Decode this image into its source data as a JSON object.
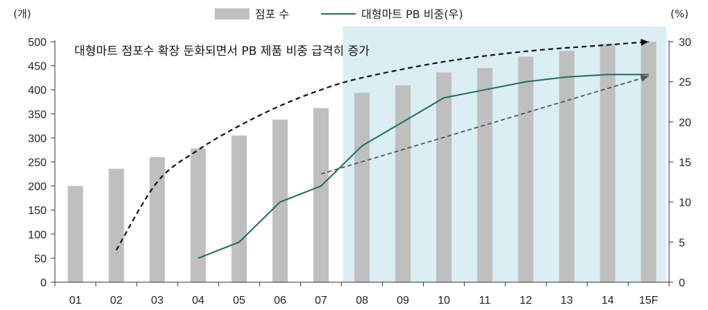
{
  "chart_data": {
    "type": "bar",
    "categories": [
      "01",
      "02",
      "03",
      "04",
      "05",
      "06",
      "07",
      "08",
      "09",
      "10",
      "11",
      "12",
      "13",
      "14",
      "15F"
    ],
    "series": [
      {
        "name": "점포 수",
        "kind": "bar",
        "axis": "left",
        "color": "#bfbfbf",
        "values": [
          200,
          236,
          260,
          278,
          305,
          338,
          362,
          394,
          409,
          436,
          445,
          469,
          481,
          495,
          500
        ]
      },
      {
        "name": "대형마트 PB 비중(우)",
        "kind": "line",
        "axis": "right",
        "color": "#1b6e64",
        "values": [
          null,
          null,
          null,
          3,
          5,
          10,
          12,
          17,
          20,
          23,
          24,
          25,
          25.6,
          25.9,
          25.9
        ]
      }
    ],
    "left_axis": {
      "unit": "(개)",
      "ylim": [
        0,
        500
      ],
      "ticks": [
        0,
        50,
        100,
        150,
        200,
        250,
        300,
        350,
        400,
        450,
        500
      ]
    },
    "right_axis": {
      "unit": "(%)",
      "ylim": [
        0,
        30
      ],
      "ticks": [
        0,
        5,
        10,
        15,
        20,
        25,
        30
      ]
    },
    "highlight": {
      "from_category": "08",
      "to_category": "15F",
      "color": "#daeef3"
    },
    "trend_arrows": [
      {
        "style": "dashed",
        "color": "#111111",
        "points": [
          [
            "02",
            4
          ],
          [
            "03",
            12.5
          ],
          [
            "04",
            16.5
          ],
          [
            "05",
            19.5
          ],
          [
            "06",
            22
          ],
          [
            "07",
            24
          ],
          [
            "08",
            25.5
          ],
          [
            "10",
            27.5
          ],
          [
            "12",
            28.8
          ],
          [
            "14",
            29.6
          ],
          [
            "15F",
            30
          ]
        ]
      },
      {
        "style": "dashed",
        "color": "#555555",
        "points": [
          [
            "07",
            13.5
          ],
          [
            "15F",
            25.7
          ]
        ]
      }
    ],
    "annotation": "대형마트 점포수 확장 둔화되면서 PB 제품 비중 급격히 증가",
    "legend_position": "top"
  }
}
